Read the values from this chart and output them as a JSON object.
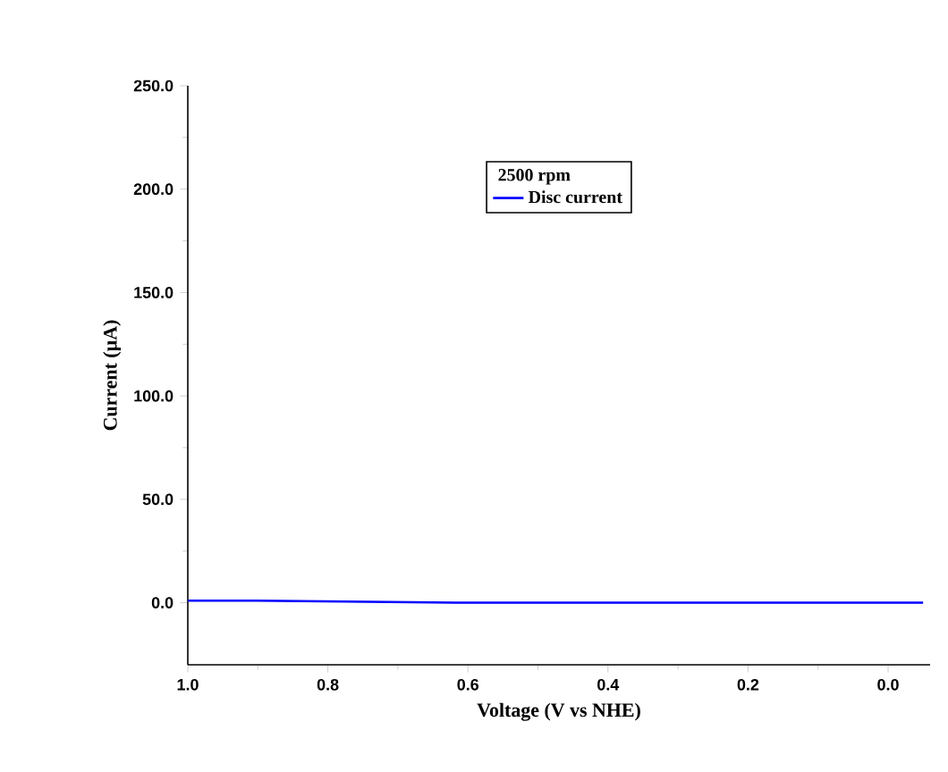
{
  "chart_data": {
    "type": "line",
    "xlabel": "Voltage (V vs NHE)",
    "ylabel": "Current (µA)",
    "legend_title": "2500 rpm",
    "legend": "top",
    "xlim": [
      1.0,
      -0.06
    ],
    "ylim": [
      -30,
      250
    ],
    "xticks": [
      {
        "value": 1.0,
        "label": "1.0"
      },
      {
        "value": 0.8,
        "label": "0.8"
      },
      {
        "value": 0.6,
        "label": "0.6"
      },
      {
        "value": 0.4,
        "label": "0.4"
      },
      {
        "value": 0.2,
        "label": "0.2"
      },
      {
        "value": 0.0,
        "label": "0.0"
      }
    ],
    "yticks": [
      {
        "value": 0,
        "label": "0.0"
      },
      {
        "value": 50,
        "label": "50.0"
      },
      {
        "value": 100,
        "label": "100.0"
      },
      {
        "value": 150,
        "label": "150.0"
      },
      {
        "value": 200,
        "label": "200.0"
      },
      {
        "value": 250,
        "label": "250.0"
      }
    ],
    "series": [
      {
        "name": "Disc current",
        "color": "#0000ff",
        "x": [
          1.0,
          0.9,
          0.6,
          0.3,
          0.15,
          0.13,
          0.0,
          -0.05
        ],
        "values": [
          1,
          1,
          0,
          0,
          0,
          0,
          0,
          0
        ]
      }
    ]
  }
}
